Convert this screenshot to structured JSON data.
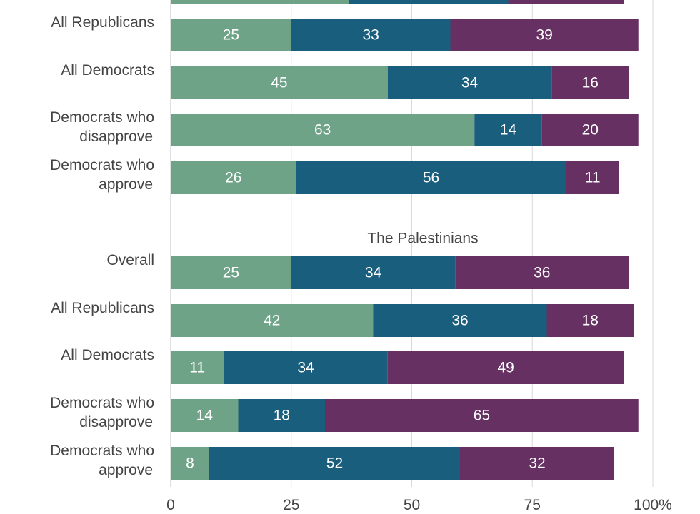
{
  "chart_data": {
    "type": "bar",
    "orientation": "horizontal",
    "stacked": true,
    "xlim": [
      0,
      100
    ],
    "x_ticks": [
      "0",
      "25",
      "50",
      "75",
      "100%"
    ],
    "grid": "vertical",
    "colors": [
      "#6fa387",
      "#1a5e7e",
      "#663062"
    ],
    "panels": [
      {
        "title": "",
        "partial_row_values": [
          37,
          33,
          24
        ],
        "categories": [
          "All Republicans",
          "All Democrats",
          "Democrats who disapprove",
          "Democrats who approve"
        ],
        "series": [
          {
            "values": [
              25,
              45,
              63,
              26
            ]
          },
          {
            "values": [
              33,
              34,
              14,
              56
            ]
          },
          {
            "values": [
              39,
              16,
              20,
              11
            ]
          }
        ]
      },
      {
        "title": "The Palestinians",
        "categories": [
          "Overall",
          "All Republicans",
          "All Democrats",
          "Democrats who disapprove",
          "Democrats who approve"
        ],
        "series": [
          {
            "values": [
              25,
              42,
              11,
              14,
              8
            ]
          },
          {
            "values": [
              34,
              36,
              34,
              18,
              52
            ]
          },
          {
            "values": [
              36,
              18,
              49,
              65,
              32
            ]
          }
        ]
      }
    ]
  }
}
